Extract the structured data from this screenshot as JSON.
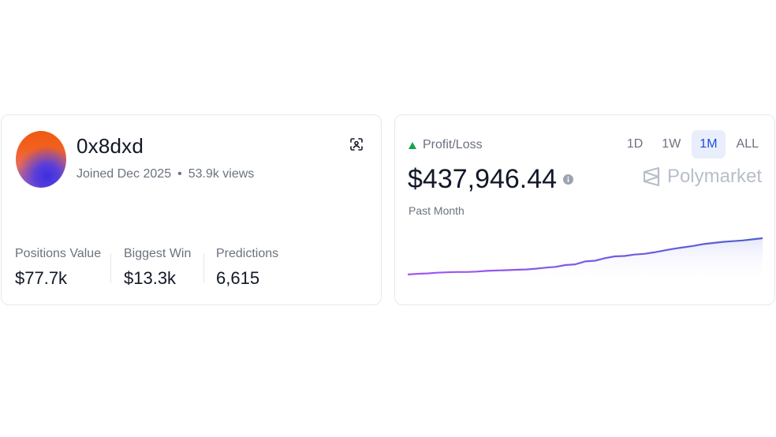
{
  "profile": {
    "username": "0x8dxd",
    "joined": "Joined Dec 2025",
    "views": "53.9k views",
    "stats": [
      {
        "label": "Positions Value",
        "value": "$77.7k"
      },
      {
        "label": "Biggest Win",
        "value": "$13.3k"
      },
      {
        "label": "Predictions",
        "value": "6,615"
      }
    ],
    "scan_icon": "scan-face-icon"
  },
  "pnl": {
    "label": "Profit/Loss",
    "value": "$437,946.44",
    "period": "Past Month",
    "brand": "Polymarket",
    "trend_color": "#16a34a",
    "ranges": [
      "1D",
      "1W",
      "1M",
      "ALL"
    ],
    "active_range": "1M"
  },
  "chart_data": {
    "type": "area",
    "title": "",
    "xlabel": "",
    "ylabel": "",
    "series": [
      {
        "values": [
          0.0,
          0.02,
          0.03,
          0.05,
          0.06,
          0.07,
          0.07,
          0.08,
          0.1,
          0.11,
          0.12,
          0.13,
          0.14,
          0.16,
          0.19,
          0.21,
          0.26,
          0.28,
          0.36,
          0.38,
          0.45,
          0.5,
          0.51,
          0.55,
          0.57,
          0.61,
          0.66,
          0.71,
          0.75,
          0.79,
          0.84,
          0.87,
          0.9,
          0.92,
          0.94,
          0.97,
          1.0
        ]
      }
    ],
    "line_color_start": "#a855f7",
    "line_color_end": "#4f5fd0",
    "fill_color": "#e6e8fb"
  }
}
